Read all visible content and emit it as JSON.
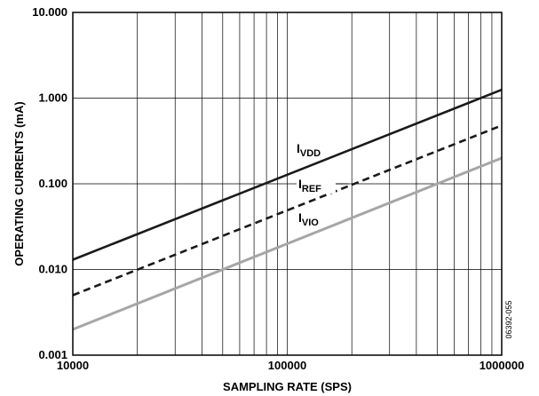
{
  "chart_data": {
    "type": "line",
    "x_scale": "log",
    "y_scale": "log",
    "xlim": [
      10000,
      1000000
    ],
    "ylim": [
      0.001,
      10
    ],
    "xlabel": "SAMPLING RATE (SPS)",
    "ylabel": "OPERATING CURRENTS (mA)",
    "x_ticks": [
      "10000",
      "100000",
      "1000000"
    ],
    "y_ticks": [
      "0.001",
      "0.010",
      "0.100",
      "1.000",
      "10.000"
    ],
    "grid": true,
    "figure_id": "06392-055",
    "series": [
      {
        "name": "I_VDD",
        "label_main": "I",
        "label_sub": "VDD",
        "color": "#1a1a1a",
        "style": "solid",
        "x": [
          10000,
          1000000
        ],
        "y": [
          0.013,
          1.25
        ]
      },
      {
        "name": "I_REF",
        "label_main": "I",
        "label_sub": "REF",
        "color": "#1a1a1a",
        "style": "dashed",
        "x": [
          10000,
          1000000
        ],
        "y": [
          0.005,
          0.48
        ]
      },
      {
        "name": "I_VIO",
        "label_main": "I",
        "label_sub": "VIO",
        "color": "#a6a6a6",
        "style": "solid",
        "x": [
          10000,
          1000000
        ],
        "y": [
          0.002,
          0.2
        ]
      }
    ]
  }
}
